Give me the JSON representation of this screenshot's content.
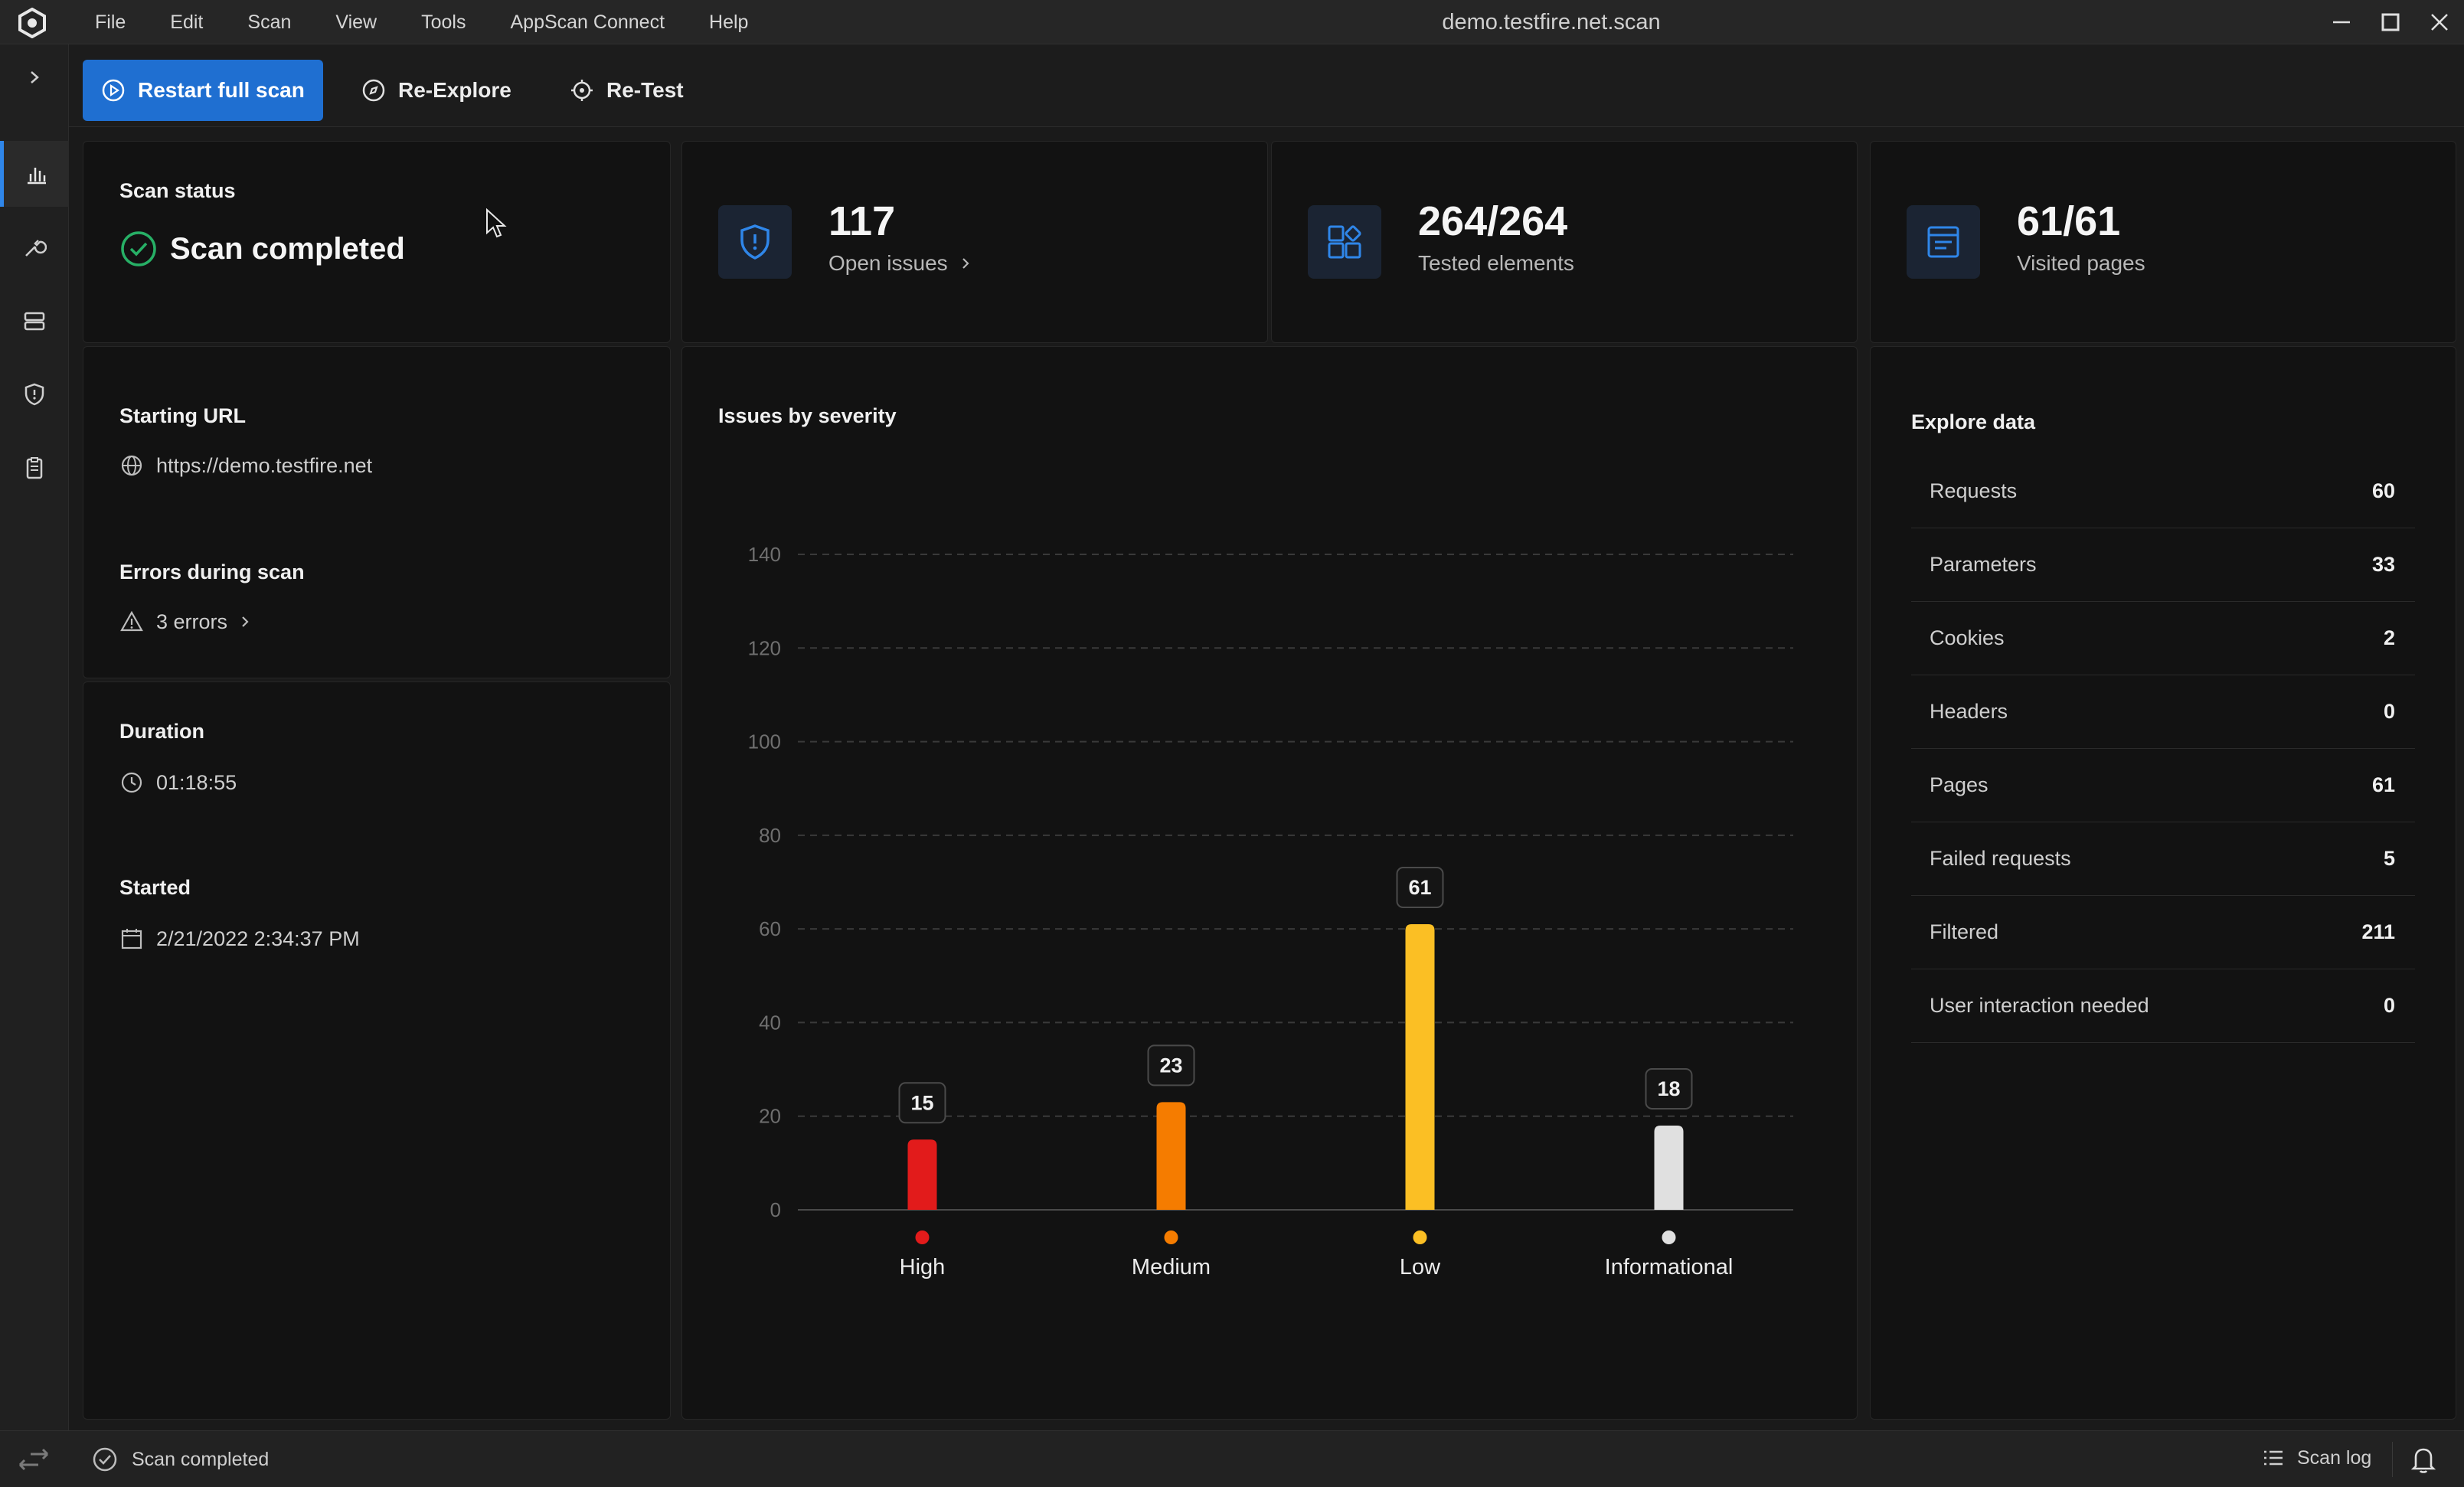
{
  "window": {
    "title": "demo.testfire.net.scan"
  },
  "menu": [
    "File",
    "Edit",
    "Scan",
    "View",
    "Tools",
    "AppScan Connect",
    "Help"
  ],
  "toolbar": {
    "restart": "Restart full scan",
    "reexplore": "Re-Explore",
    "retest": "Re-Test"
  },
  "status_panel": {
    "scan_status_label": "Scan status",
    "scan_status_value": "Scan completed",
    "starting_url_label": "Starting URL",
    "starting_url_value": "https://demo.testfire.net",
    "errors_label": "Errors during scan",
    "errors_value": "3 errors",
    "duration_label": "Duration",
    "duration_value": "01:18:55",
    "started_label": "Started",
    "started_value": "2/21/2022 2:34:37 PM"
  },
  "stats": {
    "open_issues": {
      "value": "117",
      "label": "Open issues"
    },
    "tested_elements": {
      "value": "264/264",
      "label": "Tested elements"
    },
    "visited_pages": {
      "value": "61/61",
      "label": "Visited pages"
    }
  },
  "explore": {
    "title": "Explore data",
    "rows": [
      {
        "key": "Requests",
        "value": "60"
      },
      {
        "key": "Parameters",
        "value": "33"
      },
      {
        "key": "Cookies",
        "value": "2"
      },
      {
        "key": "Headers",
        "value": "0"
      },
      {
        "key": "Pages",
        "value": "61"
      },
      {
        "key": "Failed requests",
        "value": "5"
      },
      {
        "key": "Filtered",
        "value": "211"
      },
      {
        "key": "User interaction needed",
        "value": "0"
      }
    ]
  },
  "chart_data": {
    "type": "bar",
    "title": "Issues by severity",
    "categories": [
      "High",
      "Medium",
      "Low",
      "Informational"
    ],
    "values": [
      15,
      23,
      61,
      18
    ],
    "colors": [
      "#e21b1b",
      "#f57c00",
      "#fbbf24",
      "#e0e0e0"
    ],
    "ylim": [
      0,
      140
    ],
    "yticks": [
      0,
      20,
      40,
      60,
      80,
      100,
      120,
      140
    ],
    "grid": true,
    "xlabel": "",
    "ylabel": ""
  },
  "statusbar": {
    "status": "Scan completed",
    "scan_log": "Scan log"
  },
  "colors": {
    "accent": "#1f6fd1",
    "success": "#27b066",
    "stat_icon": "#2f86e9"
  },
  "icons": {
    "logo": "appscan-logo-icon",
    "open_issues": "shield-alert-icon",
    "tested_elements": "elements-icon",
    "visited_pages": "page-icon"
  }
}
